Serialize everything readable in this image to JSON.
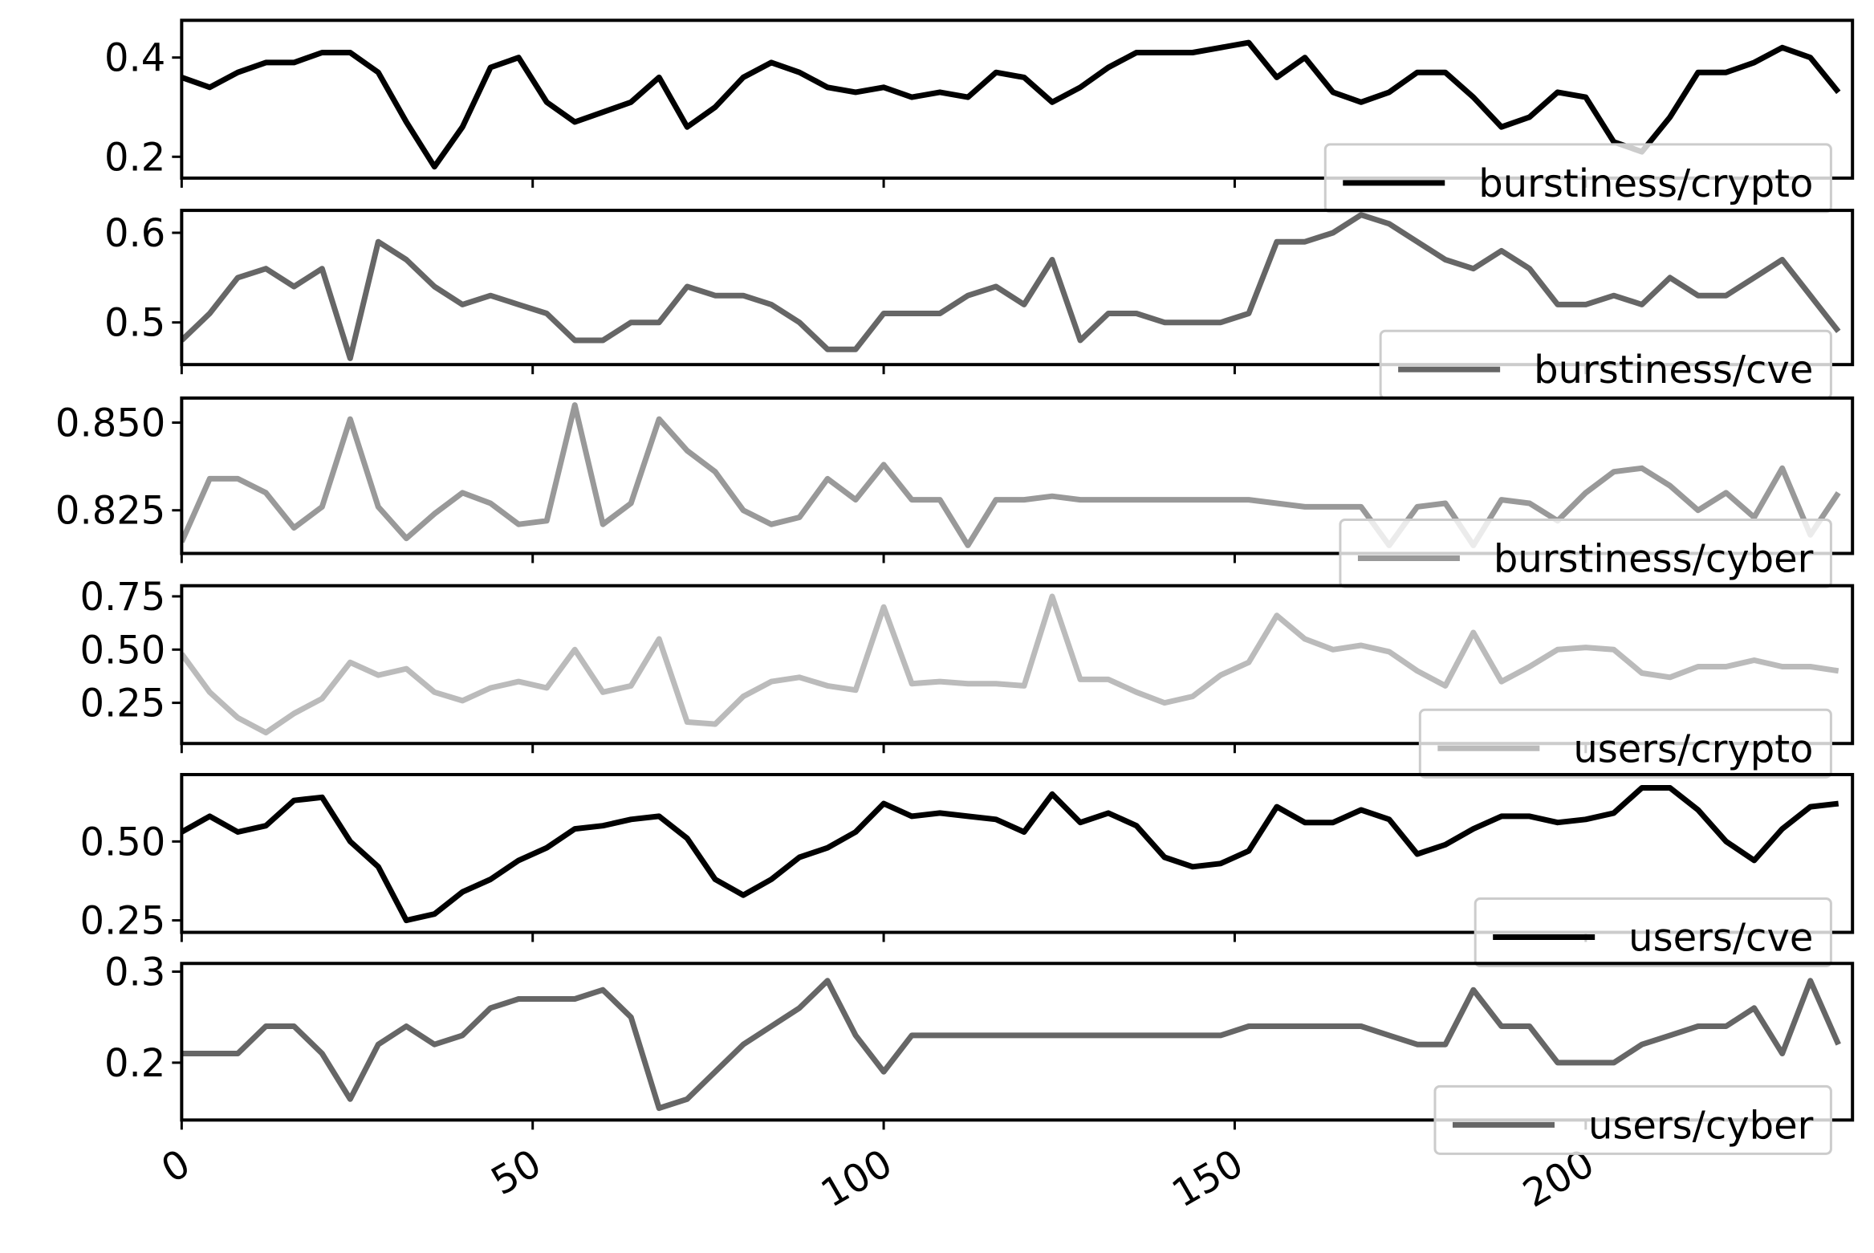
{
  "chart_data": {
    "type": "line",
    "x": [
      0,
      4,
      8,
      12,
      16,
      20,
      24,
      28,
      32,
      36,
      40,
      44,
      48,
      52,
      56,
      60,
      64,
      68,
      72,
      76,
      80,
      84,
      88,
      92,
      96,
      100,
      104,
      108,
      112,
      116,
      120,
      124,
      128,
      132,
      136,
      140,
      144,
      148,
      152,
      156,
      160,
      164,
      168,
      172,
      176,
      180,
      184,
      188,
      192,
      196,
      200,
      204,
      208,
      212,
      216,
      220,
      224,
      228,
      232,
      236
    ],
    "xlim": [
      0,
      238
    ],
    "xticks": [
      0,
      50,
      100,
      150,
      200
    ],
    "panels": [
      {
        "ylim": [
          0.157,
          0.475
        ],
        "yticks": [
          0.2,
          0.4
        ],
        "series": [
          {
            "name": "burstiness/crypto",
            "color": "#000000",
            "values": [
              0.36,
              0.34,
              0.37,
              0.39,
              0.39,
              0.41,
              0.41,
              0.37,
              0.27,
              0.18,
              0.26,
              0.38,
              0.4,
              0.31,
              0.27,
              0.29,
              0.31,
              0.36,
              0.26,
              0.3,
              0.36,
              0.39,
              0.37,
              0.34,
              0.33,
              0.34,
              0.32,
              0.33,
              0.32,
              0.37,
              0.36,
              0.31,
              0.34,
              0.38,
              0.41,
              0.41,
              0.41,
              0.42,
              0.43,
              0.36,
              0.4,
              0.33,
              0.31,
              0.33,
              0.37,
              0.37,
              0.32,
              0.26,
              0.28,
              0.33,
              0.32,
              0.23,
              0.21,
              0.28,
              0.37,
              0.37,
              0.39,
              0.42,
              0.4,
              0.33
            ]
          }
        ]
      },
      {
        "ylim": [
          0.453,
          0.625
        ],
        "yticks": [
          0.5,
          0.6
        ],
        "series": [
          {
            "name": "burstiness/cve",
            "color": "#666666",
            "values": [
              0.48,
              0.51,
              0.55,
              0.56,
              0.54,
              0.56,
              0.46,
              0.59,
              0.57,
              0.54,
              0.52,
              0.53,
              0.52,
              0.51,
              0.48,
              0.48,
              0.5,
              0.5,
              0.54,
              0.53,
              0.53,
              0.52,
              0.5,
              0.47,
              0.47,
              0.51,
              0.51,
              0.51,
              0.53,
              0.54,
              0.52,
              0.57,
              0.48,
              0.51,
              0.51,
              0.5,
              0.5,
              0.5,
              0.51,
              0.59,
              0.59,
              0.6,
              0.62,
              0.61,
              0.59,
              0.57,
              0.56,
              0.58,
              0.56,
              0.52,
              0.52,
              0.53,
              0.52,
              0.55,
              0.53,
              0.53,
              0.55,
              0.57,
              0.53,
              0.49
            ]
          }
        ]
      },
      {
        "ylim": [
          0.8127,
          0.857
        ],
        "yticks": [
          0.825,
          {
            "value": 0.85,
            "label": "0.850"
          }
        ],
        "series": [
          {
            "name": "burstiness/cyber",
            "color": "#999999",
            "values": [
              0.816,
              0.834,
              0.834,
              0.83,
              0.82,
              0.826,
              0.851,
              0.826,
              0.817,
              0.824,
              0.83,
              0.827,
              0.821,
              0.822,
              0.855,
              0.821,
              0.827,
              0.851,
              0.842,
              0.836,
              0.825,
              0.821,
              0.823,
              0.834,
              0.828,
              0.838,
              0.828,
              0.828,
              0.815,
              0.828,
              0.828,
              0.829,
              0.828,
              0.828,
              0.828,
              0.828,
              0.828,
              0.828,
              0.828,
              0.827,
              0.826,
              0.826,
              0.826,
              0.815,
              0.826,
              0.827,
              0.815,
              0.828,
              0.827,
              0.822,
              0.83,
              0.836,
              0.837,
              0.832,
              0.825,
              0.83,
              0.823,
              0.837,
              0.818,
              0.83
            ]
          }
        ]
      },
      {
        "ylim": [
          0.059,
          0.8
        ],
        "yticks": [
          0.25,
          {
            "value": 0.5,
            "label": "0.50"
          },
          0.75
        ],
        "series": [
          {
            "name": "users/crypto",
            "color": "#bbbbbb",
            "values": [
              0.48,
              0.3,
              0.18,
              0.11,
              0.2,
              0.27,
              0.44,
              0.38,
              0.41,
              0.3,
              0.26,
              0.32,
              0.35,
              0.32,
              0.5,
              0.3,
              0.33,
              0.55,
              0.16,
              0.15,
              0.28,
              0.35,
              0.37,
              0.33,
              0.31,
              0.7,
              0.34,
              0.35,
              0.34,
              0.34,
              0.33,
              0.75,
              0.36,
              0.36,
              0.3,
              0.25,
              0.28,
              0.38,
              0.44,
              0.66,
              0.55,
              0.5,
              0.52,
              0.49,
              0.4,
              0.33,
              0.58,
              0.35,
              0.42,
              0.5,
              0.51,
              0.5,
              0.39,
              0.37,
              0.42,
              0.42,
              0.45,
              0.42,
              0.42,
              0.4
            ]
          }
        ]
      },
      {
        "ylim": [
          0.212,
          0.712
        ],
        "yticks": [
          0.25,
          {
            "value": 0.5,
            "label": "0.50"
          }
        ],
        "series": [
          {
            "name": "users/cve",
            "color": "#000000",
            "values": [
              0.53,
              0.58,
              0.53,
              0.55,
              0.63,
              0.64,
              0.5,
              0.42,
              0.25,
              0.27,
              0.34,
              0.38,
              0.44,
              0.48,
              0.54,
              0.55,
              0.57,
              0.58,
              0.51,
              0.38,
              0.33,
              0.38,
              0.45,
              0.48,
              0.53,
              0.62,
              0.58,
              0.59,
              0.58,
              0.57,
              0.53,
              0.65,
              0.56,
              0.59,
              0.55,
              0.45,
              0.42,
              0.43,
              0.47,
              0.61,
              0.56,
              0.56,
              0.6,
              0.57,
              0.46,
              0.49,
              0.54,
              0.58,
              0.58,
              0.56,
              0.57,
              0.59,
              0.67,
              0.67,
              0.6,
              0.5,
              0.44,
              0.54,
              0.61,
              0.62
            ]
          }
        ]
      },
      {
        "ylim": [
          0.137,
          0.309
        ],
        "yticks": [
          0.2,
          0.3
        ],
        "series": [
          {
            "name": "users/cyber",
            "color": "#666666",
            "values": [
              0.21,
              0.21,
              0.21,
              0.24,
              0.24,
              0.21,
              0.16,
              0.22,
              0.24,
              0.22,
              0.23,
              0.26,
              0.27,
              0.27,
              0.27,
              0.28,
              0.25,
              0.15,
              0.16,
              0.19,
              0.22,
              0.24,
              0.26,
              0.29,
              0.23,
              0.19,
              0.23,
              0.23,
              0.23,
              0.23,
              0.23,
              0.23,
              0.23,
              0.23,
              0.23,
              0.23,
              0.23,
              0.23,
              0.24,
              0.24,
              0.24,
              0.24,
              0.24,
              0.23,
              0.22,
              0.22,
              0.28,
              0.24,
              0.24,
              0.2,
              0.2,
              0.2,
              0.22,
              0.23,
              0.24,
              0.24,
              0.26,
              0.21,
              0.29,
              0.22
            ]
          }
        ]
      }
    ]
  }
}
